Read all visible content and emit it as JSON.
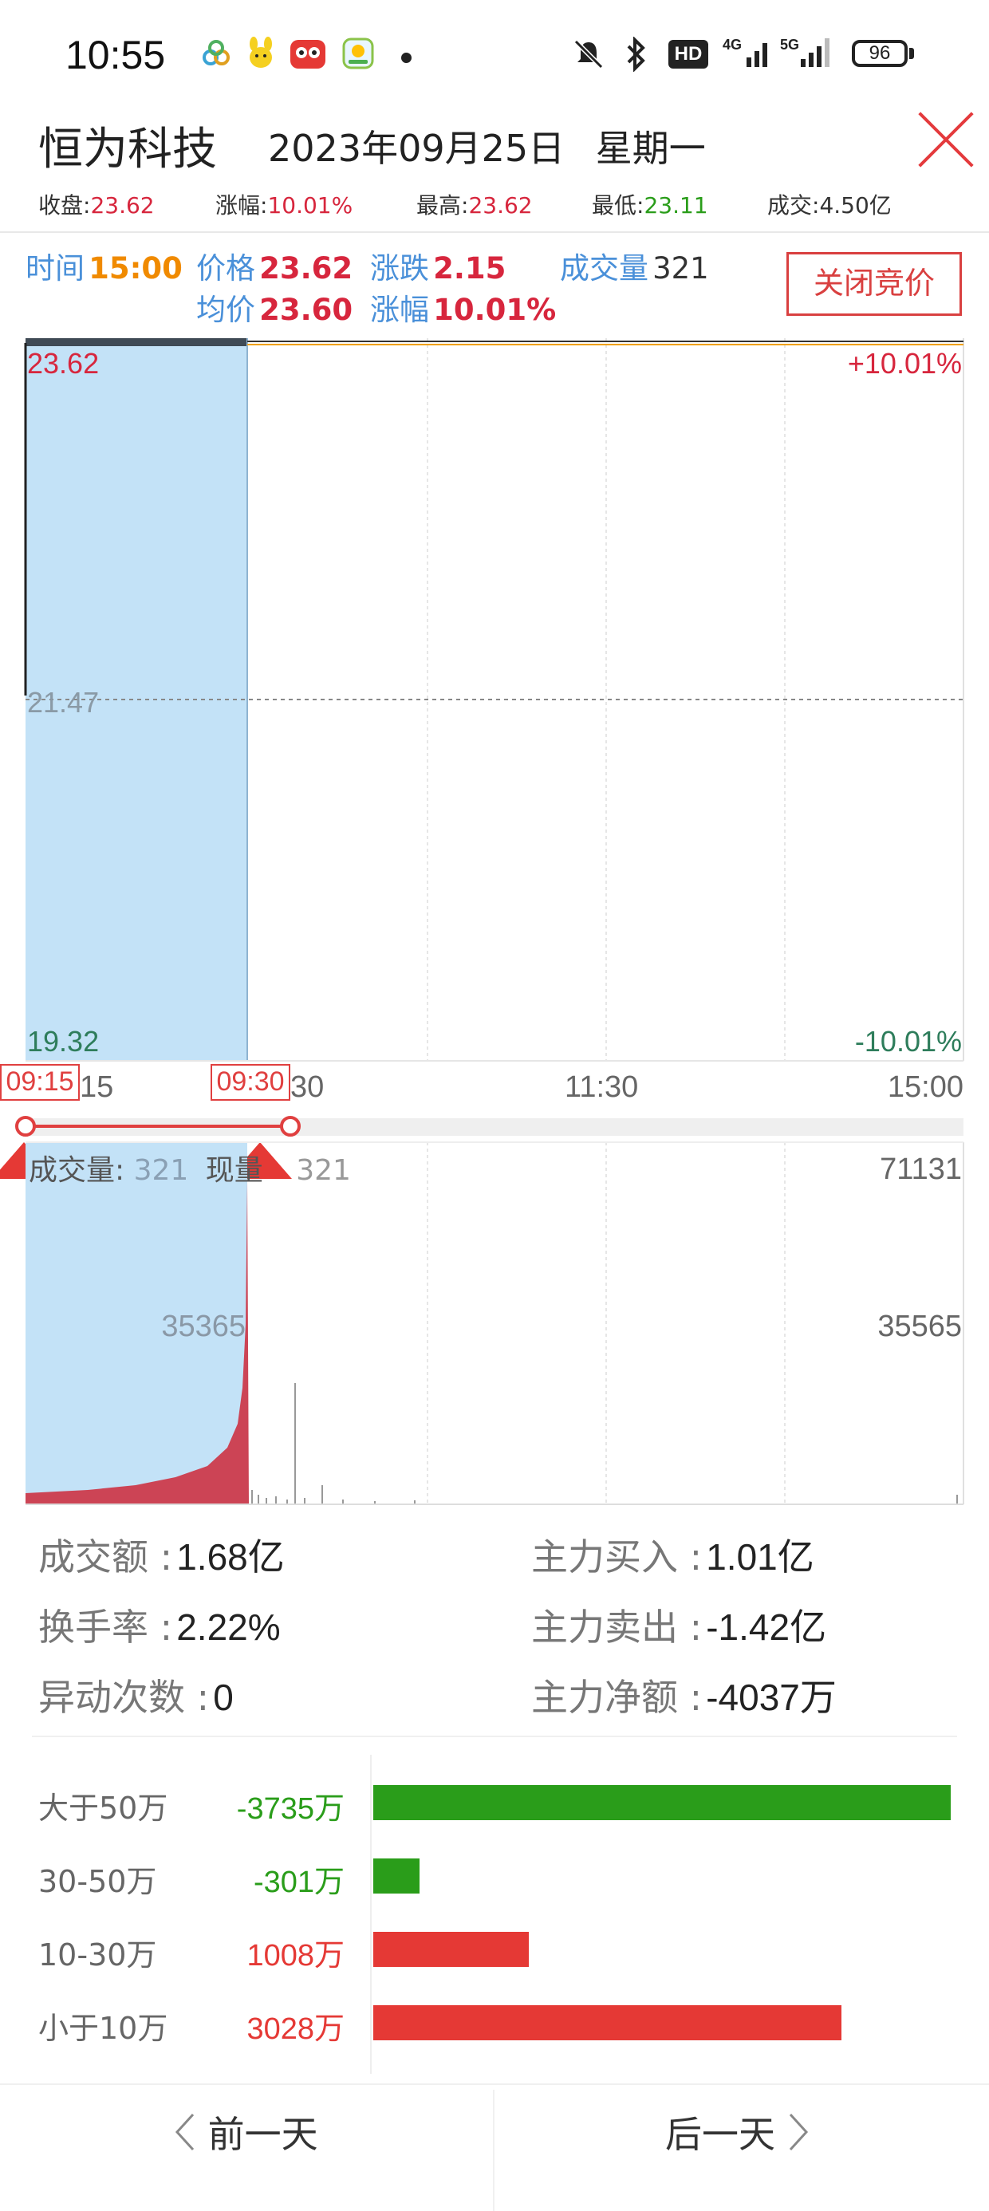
{
  "status": {
    "time": "10:55",
    "net_hd": "HD",
    "net_4g": "4G",
    "net_5g": "5G",
    "battery": "96"
  },
  "header": {
    "stock_name": "恒为科技",
    "date": "2023年09月25日",
    "weekday": "星期一"
  },
  "summary": [
    {
      "label": "收盘:",
      "value": "23.62",
      "color": "red"
    },
    {
      "label": "涨幅:",
      "value": "10.01%",
      "color": "red"
    },
    {
      "label": "最高:",
      "value": "23.62",
      "color": "red"
    },
    {
      "label": "最低:",
      "value": "23.11",
      "color": "green"
    },
    {
      "label": "成交:",
      "value": "4.50亿",
      "color": "dark"
    }
  ],
  "info": {
    "time_label": "时间",
    "time_value": "15:00",
    "price_label": "价格",
    "price_value": "23.62",
    "change_label": "涨跌",
    "change_value": "2.15",
    "volume_label": "成交量",
    "volume_value": "321",
    "avg_label": "均价",
    "avg_value": "23.60",
    "pct_label": "涨幅",
    "pct_value": "10.01%",
    "auction_button": "关闭竞价"
  },
  "price_axis": {
    "high": "23.62",
    "mid": "21.47",
    "low": "19.32",
    "high_pct": "+10.01%",
    "low_pct": "-10.01%"
  },
  "time_axis": {
    "ticks": [
      "15",
      "30",
      "11:30",
      "15:00"
    ],
    "handle_start": "09:15",
    "handle_end": "09:30"
  },
  "volume": {
    "label": "成交量:",
    "value": "321",
    "now_label": "现量",
    "now_value": "321",
    "auction_mid": "35365",
    "max": "71131",
    "mid": "35565"
  },
  "stats": {
    "amount_label": "成交额 :",
    "amount_value": "1.68亿",
    "turnover_label": "换手率 :",
    "turnover_value": "2.22%",
    "anomaly_label": "异动次数 :",
    "anomaly_value": "0",
    "main_buy_label": "主力买入 :",
    "main_buy_value": "1.01亿",
    "main_sell_label": "主力卖出 :",
    "main_sell_value": "-1.42亿",
    "main_net_label": "主力净额 :",
    "main_net_value": "-4037万"
  },
  "capital_flow": [
    {
      "label": "大于50万",
      "value": "-3735万",
      "amount": -3735,
      "color": "#2a9d1a"
    },
    {
      "label": "30-50万",
      "value": "-301万",
      "amount": -301,
      "color": "#2a9d1a"
    },
    {
      "label": "10-30万",
      "value": "1008万",
      "amount": 1008,
      "color": "#e53935"
    },
    {
      "label": "小于10万",
      "value": "3028万",
      "amount": 3028,
      "color": "#e53935"
    }
  ],
  "nav": {
    "prev": "前一天",
    "next": "后一天"
  }
}
